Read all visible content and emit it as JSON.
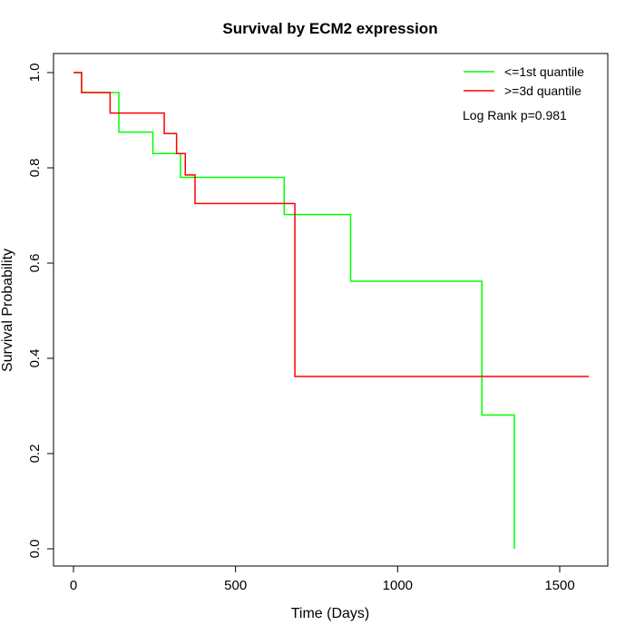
{
  "chart_data": {
    "type": "line",
    "title": "Survival by ECM2 expression",
    "xlabel": "Time (Days)",
    "ylabel": "Survival Probability",
    "xlim": [
      0,
      1650
    ],
    "ylim": [
      0,
      1.0
    ],
    "x_ticks": [
      0,
      500,
      1000,
      1500
    ],
    "x_tick_labels": [
      "0",
      "500",
      "1000",
      "1500"
    ],
    "y_ticks": [
      0.0,
      0.2,
      0.4,
      0.6,
      0.8,
      1.0
    ],
    "y_tick_labels": [
      "0.0",
      "0.2",
      "0.4",
      "0.6",
      "0.8",
      "1.0"
    ],
    "grid": false,
    "legend_position": "top-right",
    "annotation": "Log Rank p=0.981",
    "series": [
      {
        "name": "<=1st quantile",
        "color": "#00ff00",
        "step": true,
        "x": [
          0,
          25,
          140,
          245,
          330,
          650,
          855,
          1260,
          1360,
          1360
        ],
        "y": [
          1.0,
          0.958,
          0.875,
          0.83,
          0.78,
          0.702,
          0.562,
          0.281,
          0.281,
          0.0
        ]
      },
      {
        "name": ">=3d quantile",
        "color": "#ff0000",
        "step": true,
        "x": [
          0,
          25,
          113,
          280,
          318,
          345,
          375,
          683,
          1590
        ],
        "y": [
          1.0,
          0.958,
          0.915,
          0.872,
          0.83,
          0.785,
          0.725,
          0.362,
          0.362
        ]
      }
    ]
  }
}
